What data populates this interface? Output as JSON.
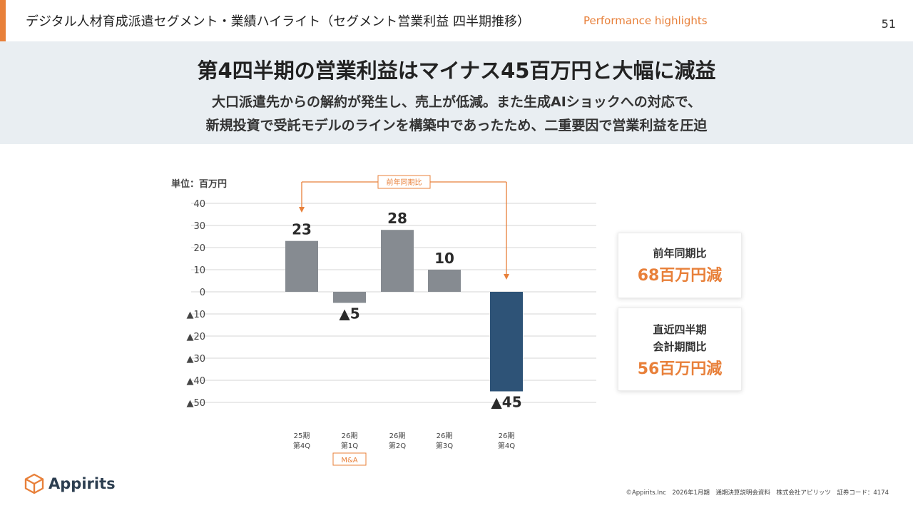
{
  "header": {
    "title": "デジタル人材育成派遣セグメント・業績ハイライト（セグメント営業利益 四半期推移）",
    "subtitle": "Performance highlights",
    "page_number": "51"
  },
  "banner": {
    "headline": "第4四半期の営業利益はマイナス45百万円と大幅に減益",
    "lead_line1": "大口派遣先からの解約が発生し、売上が低減。また生成AIショックへの対応で、",
    "lead_line2": "新規投資で受託モデルのラインを構築中であったため、二重要因で営業利益を圧迫"
  },
  "chart_data": {
    "type": "bar",
    "unit_label": "単位：百万円",
    "categories": [
      [
        "25期",
        "第4Q"
      ],
      [
        "26期",
        "第1Q"
      ],
      [
        "26期",
        "第2Q"
      ],
      [
        "26期",
        "第3Q"
      ],
      [
        "26期",
        "第4Q"
      ]
    ],
    "values": [
      23,
      -5,
      28,
      10,
      -45
    ],
    "value_labels": [
      "23",
      "▲5",
      "28",
      "10",
      "▲45"
    ],
    "ylim": [
      -50,
      40
    ],
    "yticks": [
      40,
      30,
      20,
      10,
      0,
      -10,
      -20,
      -30,
      -40,
      -50
    ],
    "ytick_labels": [
      "40",
      "30",
      "20",
      "10",
      "0",
      "▲10",
      "▲20",
      "▲30",
      "▲40",
      "▲50"
    ],
    "grid": true,
    "bar_color": "#868b91",
    "highlight_index": 4,
    "highlight_color": "#2e5377",
    "comparison_label": "前年同期比",
    "comparison_from_index": 0,
    "comparison_to_index": 4,
    "note_badge": {
      "text": "M&A",
      "category_index": 1
    },
    "accent_color": "#e8803a"
  },
  "cards": [
    {
      "label_lines": [
        "前年同期比"
      ],
      "value": "68百万円減"
    },
    {
      "label_lines": [
        "直近四半期",
        "会計期間比"
      ],
      "value": "56百万円減"
    }
  ],
  "brand": {
    "name": "Appirits",
    "logo_icon": "cube-icon",
    "logo_color": "#e8803a"
  },
  "footer": {
    "text": "©Appirits.Inc　2026年1月期　通期決算説明会資料　株式会社アピリッツ　証券コード：4174"
  }
}
